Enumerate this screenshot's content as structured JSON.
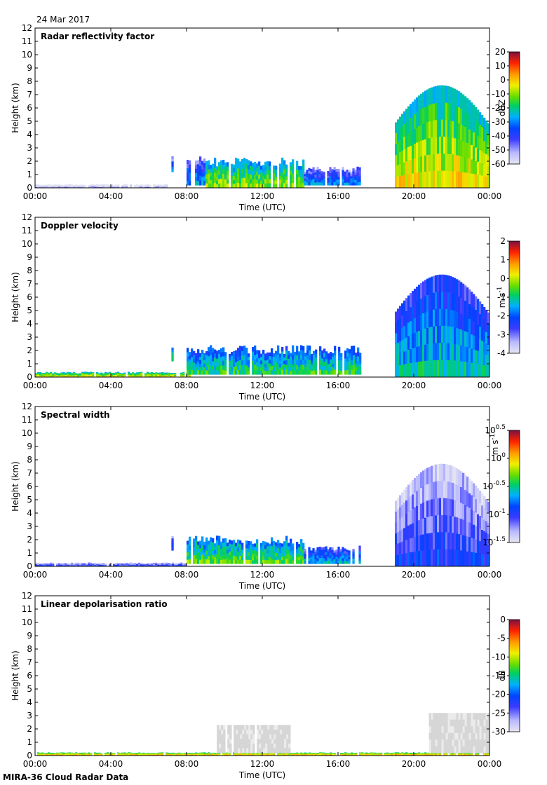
{
  "header": {
    "date": "24 Mar 2017"
  },
  "footer": {
    "text": "MIRA-36 Cloud Radar Data"
  },
  "axes": {
    "xlabel": "Time (UTC)",
    "ylabel": "Height (km)",
    "xticks": [
      "00:00",
      "04:00",
      "08:00",
      "12:00",
      "16:00",
      "20:00",
      "00:00"
    ],
    "xlim_hours": [
      0,
      24
    ],
    "yticks": [
      "0",
      "1",
      "2",
      "3",
      "4",
      "5",
      "6",
      "7",
      "8",
      "9",
      "10",
      "11",
      "12"
    ],
    "ylim_km": [
      0,
      12
    ]
  },
  "chart_data": [
    {
      "type": "heatmap",
      "title": "Radar reflectivity factor",
      "xlabel": "Time (UTC)",
      "ylabel": "Height (km)",
      "xlim": [
        0,
        24
      ],
      "ylim": [
        0,
        12
      ],
      "colorbar": {
        "label": "dBZ",
        "min": -60,
        "max": 20,
        "ticks": [
          "20",
          "10",
          "0",
          "-10",
          "-20",
          "-30",
          "-40",
          "-50",
          "-60"
        ]
      },
      "features": [
        {
          "time_start": 0.0,
          "time_end": 7.0,
          "height_top_km": 0.3,
          "level": 0.04,
          "desc": "near-surface clutter"
        },
        {
          "time_start": 7.2,
          "time_end": 7.3,
          "height_top_km": 2.5,
          "height_base_km": 1.2,
          "level": 0.28
        },
        {
          "time_start": 8.0,
          "time_end": 9.0,
          "height_top_km": 2.4,
          "height_base_km": 0.2,
          "level": 0.32
        },
        {
          "time_start": 9.0,
          "time_end": 14.2,
          "height_top_km": 2.3,
          "height_base_km": 0.0,
          "level": 0.55,
          "desc": "boundary layer clouds"
        },
        {
          "time_start": 14.2,
          "time_end": 17.2,
          "height_top_km": 1.6,
          "height_base_km": 0.2,
          "level": 0.3
        },
        {
          "time_start": 19.0,
          "time_end": 24.0,
          "height_top_km": 7.7,
          "height_base_km": 0.0,
          "level": 0.62,
          "desc": "deep precipitating cloud"
        }
      ]
    },
    {
      "type": "heatmap",
      "title": "Doppler velocity",
      "xlabel": "Time (UTC)",
      "ylabel": "Height (km)",
      "xlim": [
        0,
        24
      ],
      "ylim": [
        0,
        12
      ],
      "colorbar": {
        "label": "m s-1",
        "min": -4,
        "max": 2,
        "ticks": [
          "2",
          "1",
          "0",
          "-1",
          "-2",
          "-3",
          "-4"
        ]
      },
      "features": [
        {
          "time_start": 0.0,
          "time_end": 8.2,
          "height_top_km": 0.4,
          "level": 0.62,
          "desc": "near-zero velocity clutter"
        },
        {
          "time_start": 7.2,
          "time_end": 7.3,
          "height_top_km": 2.5,
          "height_base_km": 1.2,
          "level": 0.45
        },
        {
          "time_start": 8.0,
          "time_end": 17.2,
          "height_top_km": 2.4,
          "height_base_km": 0.2,
          "level": 0.45
        },
        {
          "time_start": 19.0,
          "time_end": 24.0,
          "height_top_km": 7.7,
          "height_base_km": 0.0,
          "level": 0.38,
          "desc": "falling precipitation"
        }
      ]
    },
    {
      "type": "heatmap",
      "title": "Spectral width",
      "xlabel": "Time (UTC)",
      "ylabel": "Height (km)",
      "xlim": [
        0,
        24
      ],
      "ylim": [
        0,
        12
      ],
      "colorbar": {
        "label": "m s-1",
        "scale": "log",
        "min": -1.5,
        "max": 0.5,
        "ticks": [
          "10^0.5",
          "10^0",
          "10^-0.5",
          "10^-1",
          "10^-1.5"
        ]
      },
      "features": [
        {
          "time_start": 0.0,
          "time_end": 8.0,
          "height_top_km": 0.3,
          "level": 0.2
        },
        {
          "time_start": 7.2,
          "time_end": 7.3,
          "height_top_km": 2.5,
          "height_base_km": 1.2,
          "level": 0.22
        },
        {
          "time_start": 8.0,
          "time_end": 14.2,
          "height_top_km": 2.3,
          "height_base_km": 0.2,
          "level": 0.5
        },
        {
          "time_start": 14.2,
          "time_end": 17.2,
          "height_top_km": 1.6,
          "height_base_km": 0.2,
          "level": 0.35
        },
        {
          "time_start": 19.0,
          "time_end": 24.0,
          "height_top_km": 7.7,
          "height_base_km": 0.0,
          "level": 0.2
        }
      ]
    },
    {
      "type": "heatmap",
      "title": "Linear depolarisation ratio",
      "xlabel": "Time (UTC)",
      "ylabel": "Height (km)",
      "xlim": [
        0,
        24
      ],
      "ylim": [
        0,
        12
      ],
      "colorbar": {
        "label": "dB",
        "min": -30,
        "max": 0,
        "ticks": [
          "0",
          "-5",
          "-10",
          "-15",
          "-20",
          "-25",
          "-30"
        ]
      },
      "features": [
        {
          "time_start": 0.0,
          "time_end": 24.0,
          "height_top_km": 0.25,
          "level": 0.7,
          "desc": "surface clutter band"
        },
        {
          "time_start": 9.6,
          "time_end": 13.4,
          "height_top_km": 2.3,
          "height_base_km": 0.2,
          "level": 0.0,
          "desc": "no-data gray"
        },
        {
          "time_start": 20.8,
          "time_end": 24.0,
          "height_top_km": 3.2,
          "height_base_km": 0.2,
          "level": 0.0,
          "desc": "no-data gray"
        }
      ]
    }
  ]
}
